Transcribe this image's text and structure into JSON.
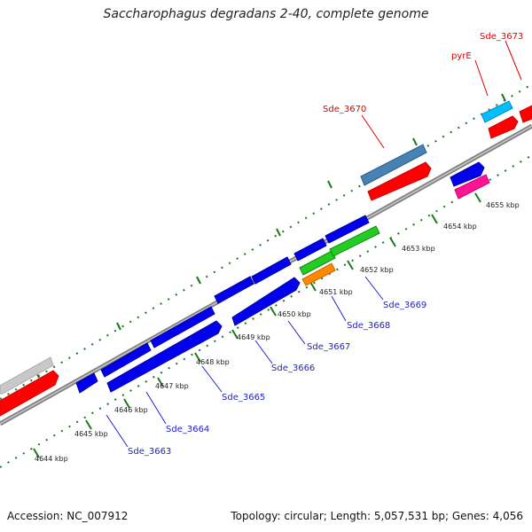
{
  "title": "Saccharophagus degradans 2-40, complete genome",
  "footer": {
    "accession": "Accession: NC_007912",
    "summary": "Topology: circular; Length: 5,057,531 bp; Genes: 4,056"
  },
  "ticks": [
    "4644 kbp",
    "4645 kbp",
    "4646 kbp",
    "4647 kbp",
    "4648 kbp",
    "4649 kbp",
    "4650 kbp",
    "4651 kbp",
    "4652 kbp",
    "4653 kbp",
    "4654 kbp",
    "4655 kbp"
  ],
  "top_labels": [
    "Sde_3670",
    "pyrE",
    "Sde_3673"
  ],
  "bottom_labels": [
    "Sde_3663",
    "Sde_3664",
    "Sde_3665",
    "Sde_3666",
    "Sde_3667",
    "Sde_3668",
    "Sde_3669"
  ],
  "colors": {
    "label_top": "#dd0000",
    "label_bottom": "#2222cc",
    "backbone": "#808080",
    "tick": "#1a7a1a"
  }
}
